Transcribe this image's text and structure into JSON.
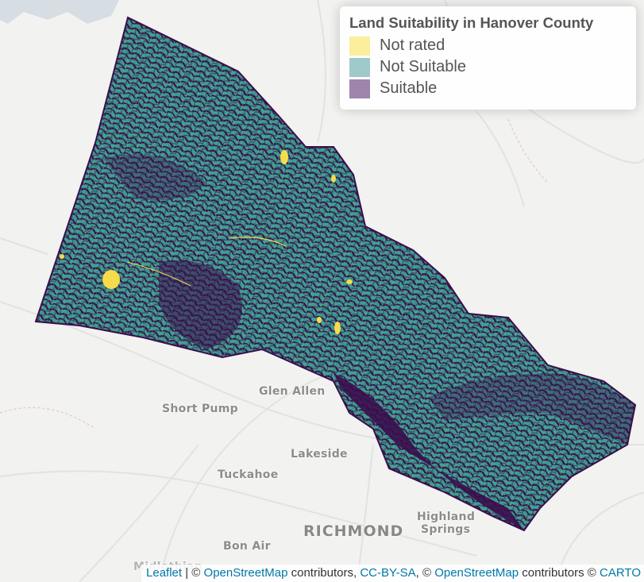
{
  "legend": {
    "title": "Land Suitability in Hanover County",
    "items": [
      {
        "label": "Not rated",
        "color": "#fbee9d"
      },
      {
        "label": "Not Suitable",
        "color": "#9fcac9"
      },
      {
        "label": "Suitable",
        "color": "#9f84ab"
      }
    ]
  },
  "map": {
    "fill_colors": {
      "not_rated": "#f6dc4a",
      "not_suitable": "#3fa08f",
      "suitable": "#3b0d4d"
    },
    "places": {
      "glen_allen": "Glen Allen",
      "short_pump": "Short Pump",
      "lakeside": "Lakeside",
      "tuckahoe": "Tuckahoe",
      "highland_springs_1": "Highland",
      "highland_springs_2": "Springs",
      "richmond": "RICHMOND",
      "bon_air": "Bon Air",
      "midlothian": "Midlothian"
    }
  },
  "attribution": {
    "leaflet": "Leaflet",
    "sep1": " | © ",
    "osm1": "OpenStreetMap",
    "text1": " contributors, ",
    "ccbysa": "CC-BY-SA",
    "text2": ", © ",
    "osm2": "OpenStreetMap",
    "text3": " contributors © ",
    "carto": "CARTO"
  }
}
